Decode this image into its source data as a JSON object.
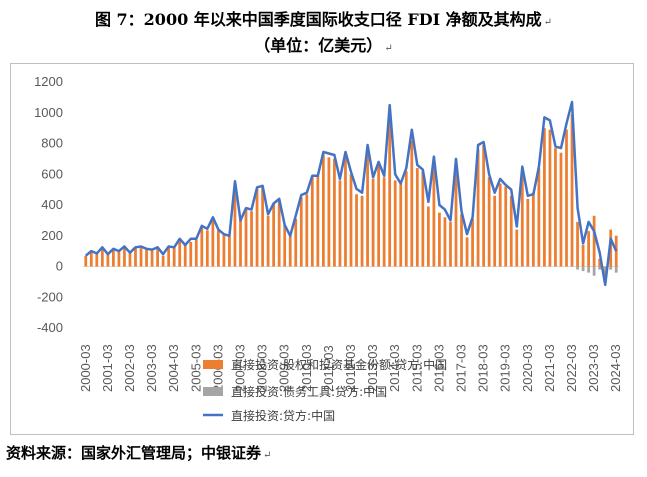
{
  "title_line1": "图 7：2000 年以来中国季度国际收支口径 FDI 净额及其构成",
  "title_line2": "（单位：亿美元）",
  "return_mark": "↵",
  "source": "资料来源：国家外汇管理局；中银证券",
  "chart_data": {
    "type": "bar",
    "y_ticks": [
      1200,
      1000,
      800,
      600,
      400,
      200,
      0,
      -200,
      -400
    ],
    "ylim": [
      -400,
      1200
    ],
    "x_tick_labels": [
      "2000-03",
      "2001-03",
      "2002-03",
      "2003-03",
      "2004-03",
      "2005-03",
      "2006-03",
      "2007-03",
      "2008-03",
      "2009-03",
      "2010-03",
      "2011-03",
      "2012-03",
      "2013-03",
      "2014-03",
      "2015-03",
      "2016-03",
      "2017-03",
      "2018-03",
      "2019-03",
      "2020-03",
      "2021-03",
      "2022-03",
      "2023-03",
      "2024-03"
    ],
    "legend_placement": "bottom",
    "grid": false,
    "colors": {
      "equity": "#ED7D31",
      "debt": "#A5A5A5",
      "total": "#4472C4"
    },
    "series": [
      {
        "name": "直接投资:股权和投资基金份额:贷方:中国",
        "values": [
          70,
          95,
          85,
          115,
          85,
          110,
          100,
          125,
          85,
          120,
          120,
          110,
          105,
          120,
          70,
          120,
          120,
          165,
          140,
          160,
          175,
          255,
          235,
          300,
          235,
          205,
          195,
          530,
          305,
          375,
          360,
          510,
          515,
          330,
          410,
          430,
          270,
          200,
          310,
          450,
          470,
          580,
          590,
          730,
          710,
          700,
          560,
          730,
          600,
          470,
          460,
          750,
          570,
          660,
          580,
          950,
          560,
          540,
          620,
          820,
          640,
          620,
          390,
          670,
          350,
          320,
          290,
          650,
          340,
          190,
          310,
          760,
          790,
          580,
          460,
          540,
          520,
          460,
          240,
          610,
          440,
          480,
          640,
          900,
          890,
          770,
          740,
          890,
          990,
          290,
          140,
          230,
          330,
          50,
          -110,
          240,
          200
        ]
      },
      {
        "name": "直接投资:债务工具:贷方:中国",
        "values": [
          0,
          0,
          0,
          0,
          0,
          0,
          0,
          0,
          0,
          0,
          0,
          0,
          0,
          0,
          0,
          0,
          0,
          0,
          0,
          0,
          0,
          0,
          0,
          0,
          0,
          0,
          0,
          0,
          0,
          0,
          0,
          0,
          0,
          0,
          0,
          0,
          0,
          0,
          0,
          0,
          0,
          0,
          0,
          0,
          0,
          0,
          0,
          0,
          0,
          0,
          0,
          0,
          0,
          0,
          0,
          0,
          0,
          0,
          0,
          0,
          0,
          0,
          0,
          0,
          0,
          0,
          0,
          0,
          0,
          0,
          0,
          0,
          0,
          0,
          0,
          0,
          0,
          0,
          0,
          0,
          0,
          0,
          0,
          0,
          0,
          0,
          0,
          0,
          0,
          -20,
          -30,
          -40,
          -60,
          -20,
          -30,
          -20,
          -40
        ]
      },
      {
        "name": "直接投资:贷方:中国",
        "values": [
          70,
          100,
          85,
          125,
          80,
          115,
          100,
          130,
          90,
          125,
          130,
          115,
          110,
          125,
          80,
          130,
          125,
          180,
          140,
          180,
          180,
          265,
          245,
          320,
          240,
          210,
          200,
          555,
          300,
          380,
          370,
          515,
          525,
          340,
          410,
          440,
          270,
          200,
          330,
          465,
          480,
          590,
          590,
          745,
          735,
          725,
          570,
          745,
          615,
          505,
          480,
          790,
          580,
          680,
          590,
          1050,
          600,
          540,
          640,
          890,
          660,
          630,
          420,
          715,
          400,
          370,
          300,
          700,
          360,
          210,
          320,
          790,
          810,
          600,
          480,
          570,
          530,
          500,
          260,
          650,
          460,
          470,
          650,
          970,
          950,
          780,
          770,
          930,
          1070,
          380,
          150,
          290,
          230,
          90,
          -120,
          180,
          100
        ]
      }
    ]
  }
}
